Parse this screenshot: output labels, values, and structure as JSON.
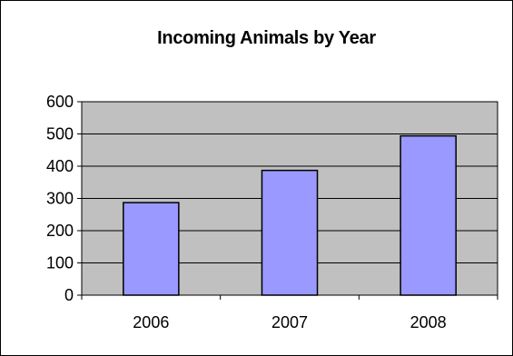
{
  "chart_data": {
    "type": "bar",
    "title": "Incoming Animals by Year",
    "xlabel": "",
    "ylabel": "",
    "categories": [
      "2006",
      "2007",
      "2008"
    ],
    "values": [
      287,
      387,
      494
    ],
    "ylim": [
      0,
      600
    ],
    "yticks": [
      0,
      100,
      200,
      300,
      400,
      500,
      600
    ],
    "ytick_labels": [
      "0",
      "100",
      "200",
      "300",
      "400",
      "500",
      "600"
    ],
    "grid": true,
    "legend": "none",
    "colors": {
      "bar_fill": "#9999ff",
      "bar_stroke": "#000000",
      "plot_background": "#c0c0c0",
      "gridline": "#000000",
      "frame_border": "#000000"
    }
  }
}
